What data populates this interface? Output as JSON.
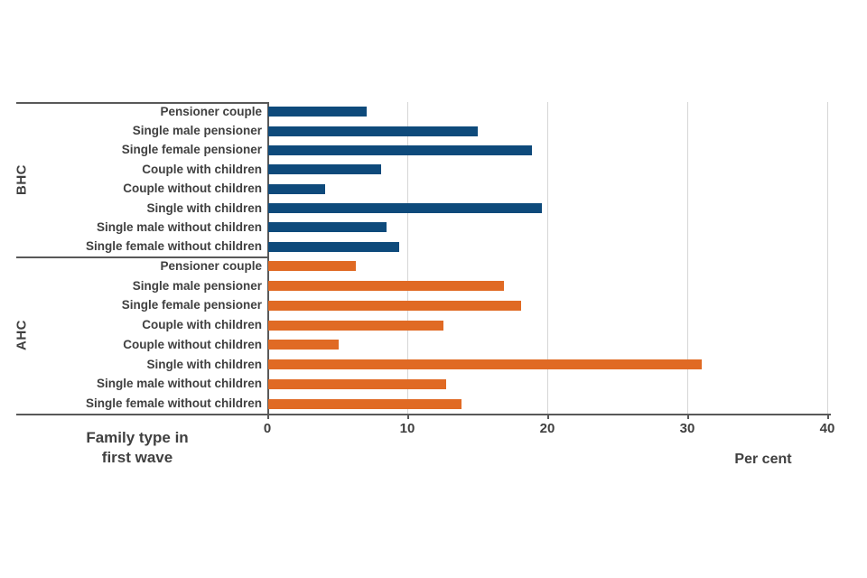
{
  "chart_data": {
    "type": "bar",
    "orientation": "horizontal",
    "title": "",
    "xlabel": "Per cent",
    "ylabel": "Family type in\nfirst wave",
    "xlim": [
      0,
      40
    ],
    "xticks": [
      0,
      10,
      20,
      30,
      40
    ],
    "grid": true,
    "legend_position": "none",
    "categories": [
      "Pensioner couple",
      "Single male pensioner",
      "Single female pensioner",
      "Couple with children",
      "Couple without children",
      "Single with children",
      "Single male without children",
      "Single female without children"
    ],
    "series": [
      {
        "name": "BHC",
        "color": "#0e4a7b",
        "values": [
          7.1,
          15.0,
          18.9,
          8.1,
          4.1,
          19.6,
          8.5,
          9.4
        ]
      },
      {
        "name": "AHC",
        "color": "#e06a24",
        "values": [
          6.3,
          16.9,
          18.1,
          12.6,
          5.1,
          31.0,
          12.8,
          13.9
        ]
      }
    ]
  },
  "colors": {
    "text": "#404040",
    "axis_line": "#595959",
    "gridline": "#d6d6d6",
    "background": "#ffffff"
  }
}
